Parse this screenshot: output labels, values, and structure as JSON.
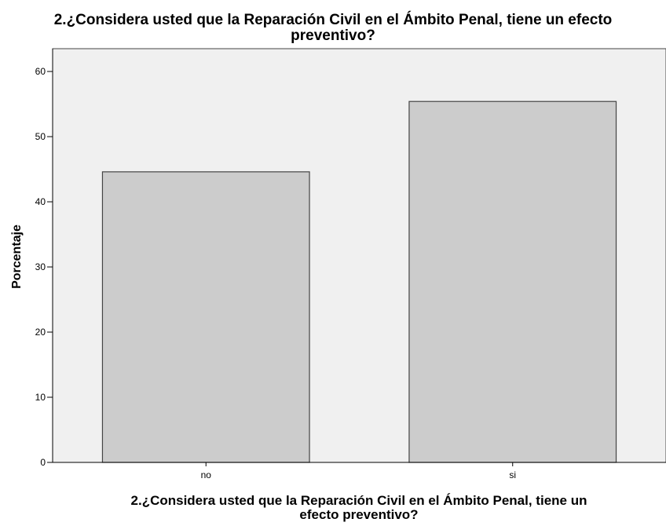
{
  "chart_data": {
    "type": "bar",
    "title": "2.¿Considera usted que la Reparación Civil en el Ámbito Penal, tiene un efecto preventivo?",
    "title_lines": [
      "2.¿Considera usted que la Reparación Civil en el Ámbito Penal, tiene un efecto",
      "preventivo?"
    ],
    "xlabel": "2.¿Considera usted que la Reparación Civil en el Ámbito Penal, tiene un efecto preventivo?",
    "xlabel_lines": [
      "2.¿Considera usted que la Reparación Civil en el Ámbito Penal, tiene un",
      "efecto preventivo?"
    ],
    "ylabel": "Porcentaje",
    "categories": [
      "no",
      "si"
    ],
    "values": [
      44.6,
      55.4
    ],
    "ylim": [
      0,
      63.5
    ],
    "yticks": [
      0,
      10,
      20,
      30,
      40,
      50,
      60
    ],
    "grid": false,
    "legend": "none",
    "colors": {
      "plot_background": "#f0f0f0",
      "bar_fill": "#cccccc",
      "bar_stroke": "#444444",
      "axis": "#000000"
    }
  }
}
